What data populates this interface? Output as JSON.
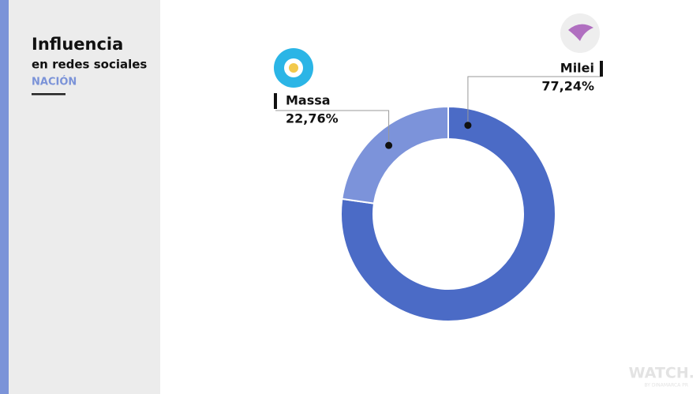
{
  "chart_data": {
    "type": "pie",
    "title": "Influencia",
    "subtitle": "en redes sociales",
    "region": "NACIÓN",
    "categories": [
      "Milei",
      "Massa"
    ],
    "values": [
      77.24,
      22.76
    ],
    "value_labels": [
      "77,24%",
      "22,76%"
    ],
    "colors": [
      "#4b6bc6",
      "#7c93da"
    ],
    "donut": true
  },
  "watermark": {
    "brand": "WATCH.",
    "byline": "BY DINAMARCA PR"
  }
}
